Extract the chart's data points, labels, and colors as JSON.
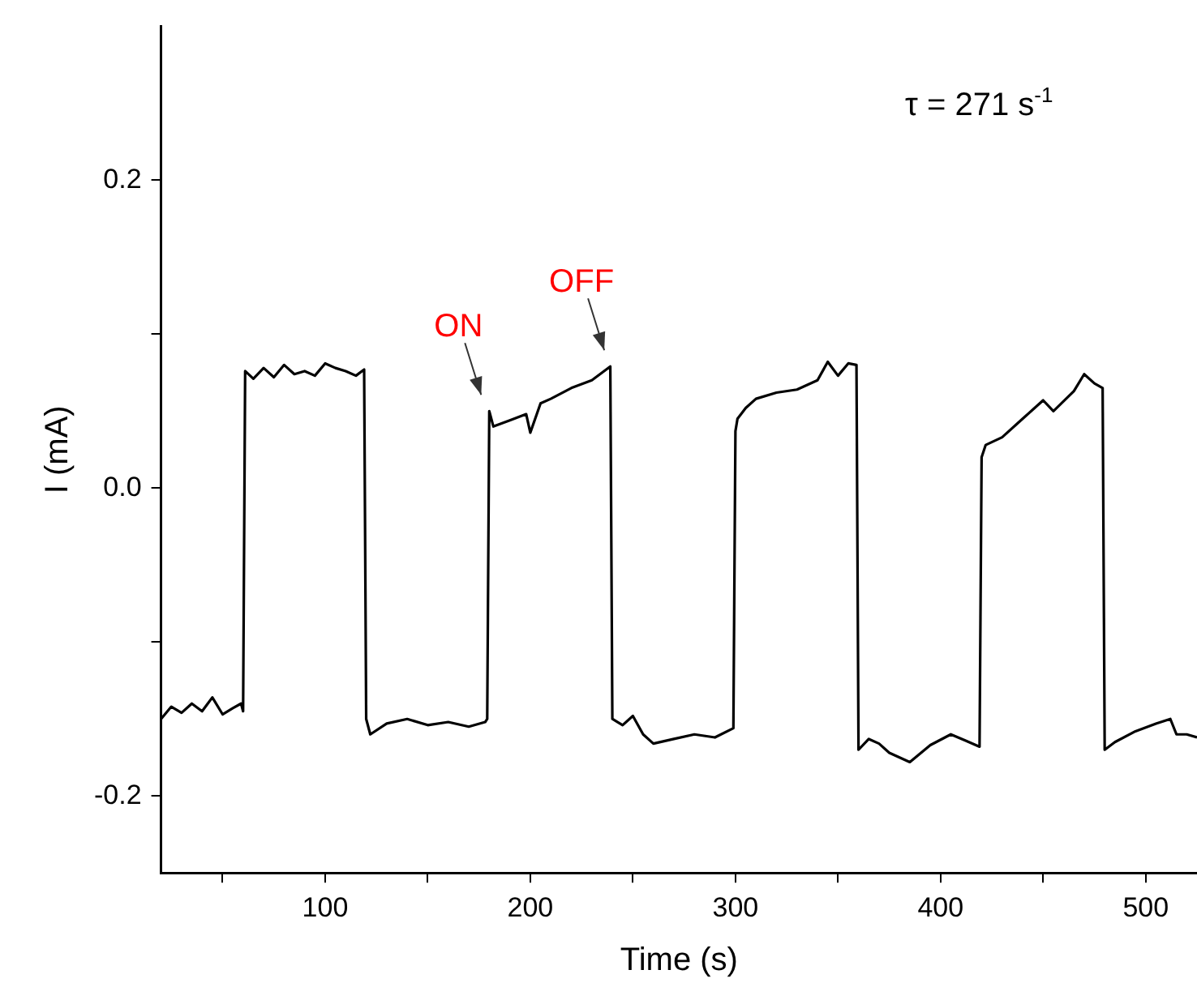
{
  "chart_data": {
    "type": "line",
    "xlabel": "Time (s)",
    "ylabel": "I (mA)",
    "x": [
      20,
      25,
      30,
      35,
      40,
      45,
      50,
      55,
      59,
      60,
      61,
      65,
      70,
      75,
      80,
      85,
      90,
      95,
      100,
      105,
      110,
      115,
      119,
      120,
      122,
      130,
      140,
      150,
      160,
      170,
      178,
      179,
      180,
      182,
      190,
      198,
      200,
      205,
      210,
      220,
      230,
      239,
      240,
      245,
      250,
      255,
      260,
      270,
      280,
      290,
      299,
      300,
      301,
      305,
      310,
      320,
      330,
      340,
      345,
      350,
      355,
      359,
      360,
      365,
      370,
      375,
      385,
      395,
      405,
      412,
      419,
      420,
      422,
      430,
      440,
      450,
      455,
      465,
      470,
      475,
      479,
      480,
      485,
      495,
      505,
      512,
      515,
      520,
      525
    ],
    "series": [
      {
        "color": "#000000",
        "values": [
          -0.15,
          -0.142,
          -0.146,
          -0.14,
          -0.145,
          -0.136,
          -0.147,
          -0.143,
          -0.14,
          -0.145,
          0.076,
          0.071,
          0.078,
          0.072,
          0.08,
          0.074,
          0.076,
          0.073,
          0.081,
          0.078,
          0.076,
          0.073,
          0.077,
          -0.15,
          -0.16,
          -0.153,
          -0.15,
          -0.154,
          -0.152,
          -0.155,
          -0.152,
          -0.15,
          0.05,
          0.04,
          0.044,
          0.048,
          0.036,
          0.055,
          0.058,
          0.065,
          0.07,
          0.079,
          -0.15,
          -0.154,
          -0.148,
          -0.16,
          -0.166,
          -0.163,
          -0.16,
          -0.162,
          -0.156,
          0.037,
          0.045,
          0.052,
          0.058,
          0.062,
          0.064,
          0.07,
          0.082,
          0.073,
          0.081,
          0.08,
          -0.17,
          -0.163,
          -0.166,
          -0.172,
          -0.178,
          -0.167,
          -0.16,
          -0.164,
          -0.168,
          0.02,
          0.028,
          0.033,
          0.045,
          0.057,
          0.05,
          0.063,
          0.074,
          0.068,
          0.065,
          -0.17,
          -0.165,
          -0.158,
          -0.153,
          -0.15,
          -0.16,
          -0.16,
          -0.162
        ]
      }
    ],
    "xlim": [
      20,
      525
    ],
    "xticks": [
      {
        "value": 50,
        "label": null
      },
      100,
      {
        "value": 150,
        "label": null
      },
      200,
      {
        "value": 250,
        "label": null
      },
      300,
      {
        "value": 350,
        "label": null
      },
      400,
      {
        "value": 450,
        "label": null
      },
      500
    ],
    "ylim": [
      -0.25,
      0.3
    ],
    "yticks": [
      -0.2,
      {
        "value": -0.1,
        "label": null
      },
      {
        "value": 0,
        "label": "0.0"
      },
      {
        "value": 0.1,
        "label": null
      },
      0.2
    ],
    "grid": false,
    "legend": false,
    "marker": "none",
    "line_style": "solid",
    "annotations": [
      "τ = 271 s$^{-1}$",
      {
        "text": "ON",
        "x": 180,
        "y": 0.05
      },
      {
        "text": "OFF",
        "x": 240,
        "y": 0.079
      }
    ]
  }
}
